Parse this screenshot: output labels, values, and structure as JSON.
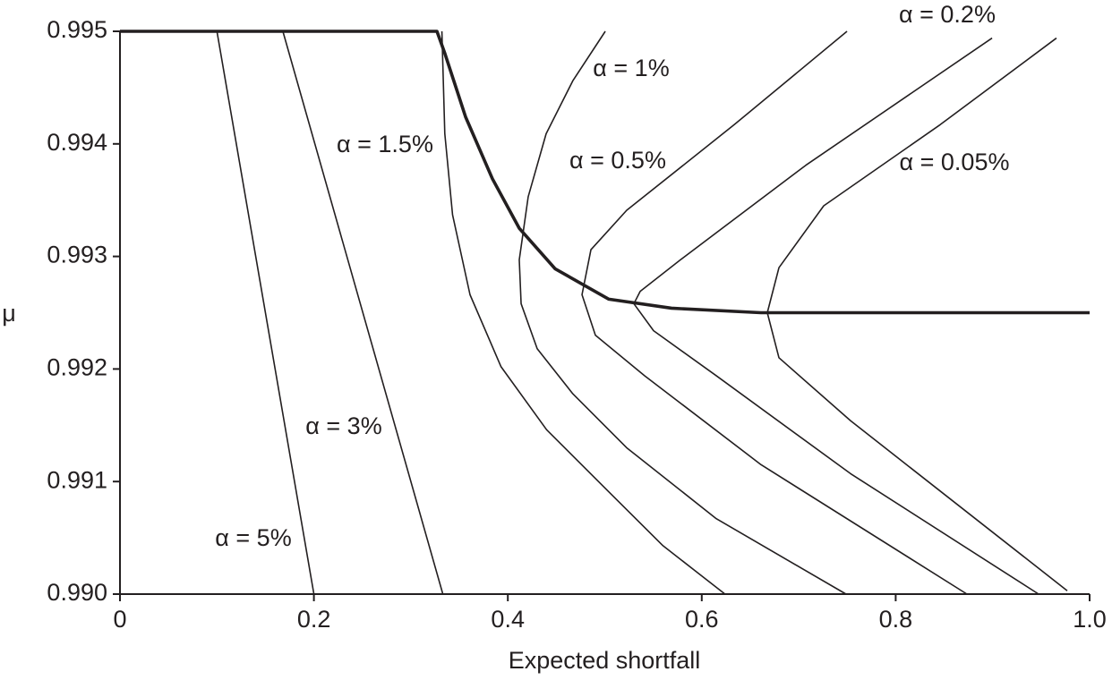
{
  "chart_data": {
    "type": "line",
    "x_label": "Expected shortfall",
    "y_label": "μ",
    "xlim": [
      0,
      1
    ],
    "xticks": [
      0,
      0.2,
      0.4,
      0.6,
      0.8,
      {
        "value": 1,
        "label": "1.0"
      }
    ],
    "ylim": [
      0.99,
      0.995
    ],
    "yticks": [
      {
        "value": 0.99,
        "label": "0.990"
      },
      0.991,
      0.992,
      0.993,
      0.994,
      0.995
    ],
    "series": [
      {
        "name": "α = 5%",
        "color": "#231f20",
        "x": [
          0.1,
          0.2
        ],
        "values": [
          0.995,
          0.99
        ]
      },
      {
        "name": "α = 3%",
        "color": "#231f20",
        "x": [
          0.168,
          0.333
        ],
        "values": [
          0.995,
          0.99
        ]
      },
      {
        "name": "α = 1.5%",
        "color": "#231f20",
        "x": [
          0.332,
          0.335,
          0.343,
          0.361,
          0.393,
          0.44,
          0.504,
          0.56,
          0.624
        ],
        "values": [
          0.995,
          0.99409,
          0.99337,
          0.99266,
          0.99202,
          0.99146,
          0.99091,
          0.99043,
          0.99
        ]
      },
      {
        "name": "α = 1%",
        "color": "#231f20",
        "x": [
          0.5005,
          0.467,
          0.4395,
          0.421,
          0.4118,
          0.4137,
          0.4303,
          0.467,
          0.5226,
          0.615,
          0.7488
        ],
        "values": [
          0.995,
          0.99456,
          0.99409,
          0.99353,
          0.99297,
          0.99258,
          0.99218,
          0.99178,
          0.9913,
          0.99067,
          0.99
        ]
      },
      {
        "name": "α = 0.5%",
        "color": "#231f20",
        "x": [
          0.7498,
          0.6334,
          0.5226,
          0.4857,
          0.4765,
          0.4903,
          0.5411,
          0.6611,
          0.8735
        ],
        "values": [
          0.995,
          0.99417,
          0.99341,
          0.99306,
          0.99266,
          0.9923,
          0.99194,
          0.99115,
          0.99
        ]
      },
      {
        "name": "α = 0.2%",
        "color": "#231f20",
        "x": [
          0.8994,
          0.7073,
          0.578,
          0.5365,
          0.53,
          0.5503,
          0.615,
          0.7535,
          0.9474
        ],
        "values": [
          0.99494,
          0.99381,
          0.99297,
          0.99269,
          0.99258,
          0.99234,
          0.99194,
          0.99107,
          0.99
        ]
      },
      {
        "name": "α = 0.05%",
        "color": "#231f20",
        "x": [
          0.9658,
          0.8458,
          0.7258,
          0.6796,
          0.6676,
          0.6796,
          0.7535,
          0.9769
        ],
        "values": [
          0.99494,
          0.99417,
          0.99345,
          0.9929,
          0.9925,
          0.9921,
          0.99154,
          0.99003
        ]
      },
      {
        "color": "#231f20",
        "x": [
          0,
          0.3269,
          0.3352,
          0.3564,
          0.3841,
          0.4118,
          0.4488,
          0.5042,
          0.5688,
          0.6611,
          1
        ],
        "values": [
          0.995,
          0.995,
          0.9948,
          0.99424,
          0.99369,
          0.99325,
          0.99289,
          0.99262,
          0.99254,
          0.9925,
          0.9925
        ]
      }
    ]
  }
}
